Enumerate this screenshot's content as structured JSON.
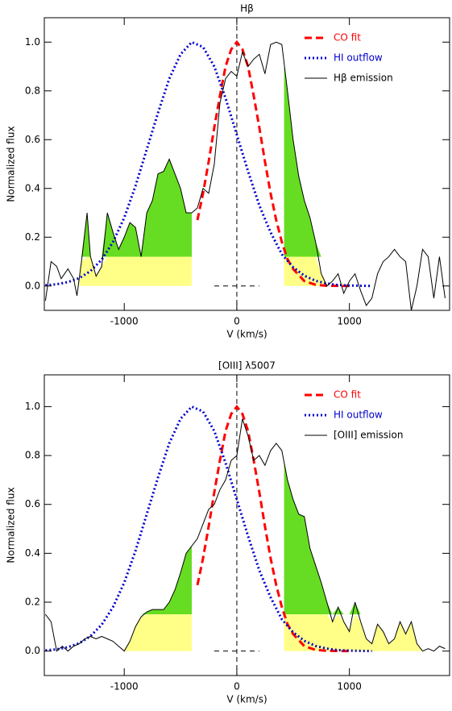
{
  "chart_data": [
    {
      "type": "line",
      "title": "Hβ",
      "xlabel": "V (km/s)",
      "ylabel": "Normalized flux",
      "xlim": [
        -1710,
        1890
      ],
      "ylim": [
        -0.1,
        1.1
      ],
      "xticks": [
        -1000,
        0,
        1000
      ],
      "yticks": [
        {
          "value": 0,
          "label": "0.0"
        },
        0.2,
        0.4,
        0.6,
        0.8,
        {
          "value": 1,
          "label": "1.0"
        }
      ],
      "legend": "upper right",
      "vline": 0,
      "hsegment": {
        "x": [
          -200,
          200
        ],
        "y": 0
      },
      "shade": {
        "ranges": [
          [
            -1400,
            -400
          ],
          [
            420,
            780
          ]
        ],
        "level": 0.12,
        "upper_color": "#66dd22",
        "lower_color": "#ffff88"
      },
      "series": [
        {
          "name": "CO fit",
          "color": "#ff0000",
          "linestyle": "dashed",
          "x": [
            -350,
            -300,
            -250,
            -200,
            -150,
            -100,
            -50,
            0,
            50,
            100,
            150,
            200,
            250,
            300,
            350,
            400,
            450,
            500,
            600,
            700,
            800,
            1000
          ],
          "values": [
            0.27,
            0.38,
            0.51,
            0.65,
            0.78,
            0.9,
            0.97,
            1.0,
            0.97,
            0.9,
            0.78,
            0.65,
            0.51,
            0.38,
            0.27,
            0.18,
            0.11,
            0.07,
            0.02,
            0.005,
            0.001,
            0.0
          ]
        },
        {
          "name": "HI outflow",
          "color": "#0000cc",
          "linestyle": "dotted",
          "x": [
            -1700,
            -1600,
            -1500,
            -1400,
            -1300,
            -1200,
            -1100,
            -1000,
            -900,
            -800,
            -700,
            -600,
            -500,
            -400,
            -300,
            -200,
            -100,
            0,
            100,
            200,
            300,
            400,
            500,
            600,
            700,
            800,
            900,
            1000,
            1100,
            1200
          ],
          "values": [
            0.003,
            0.007,
            0.016,
            0.032,
            0.061,
            0.108,
            0.18,
            0.28,
            0.41,
            0.56,
            0.71,
            0.85,
            0.95,
            1.0,
            0.98,
            0.9,
            0.77,
            0.62,
            0.47,
            0.33,
            0.22,
            0.13,
            0.077,
            0.042,
            0.021,
            0.01,
            0.004,
            0.002,
            0.001,
            0.0
          ]
        },
        {
          "name": "Hβ emission",
          "color": "#000000",
          "linestyle": "solid",
          "x": [
            -1700,
            -1650,
            -1600,
            -1560,
            -1500,
            -1450,
            -1420,
            -1380,
            -1330,
            -1300,
            -1250,
            -1200,
            -1150,
            -1100,
            -1050,
            -1000,
            -950,
            -900,
            -850,
            -800,
            -750,
            -700,
            -650,
            -600,
            -550,
            -500,
            -450,
            -400,
            -350,
            -300,
            -250,
            -200,
            -150,
            -100,
            -50,
            0,
            50,
            100,
            150,
            200,
            250,
            300,
            350,
            400,
            450,
            500,
            550,
            600,
            650,
            700,
            750,
            800,
            850,
            900,
            950,
            1000,
            1050,
            1100,
            1150,
            1200,
            1250,
            1300,
            1350,
            1400,
            1450,
            1500,
            1550,
            1600,
            1650,
            1700,
            1750,
            1800,
            1850
          ],
          "values": [
            -0.06,
            0.1,
            0.08,
            0.03,
            0.07,
            0.03,
            -0.04,
            0.1,
            0.3,
            0.12,
            0.04,
            0.08,
            0.3,
            0.22,
            0.15,
            0.2,
            0.26,
            0.24,
            0.12,
            0.3,
            0.35,
            0.46,
            0.47,
            0.52,
            0.46,
            0.4,
            0.3,
            0.3,
            0.32,
            0.4,
            0.38,
            0.5,
            0.75,
            0.85,
            0.88,
            0.86,
            0.96,
            0.9,
            0.93,
            0.95,
            0.87,
            0.99,
            1.0,
            0.99,
            0.8,
            0.6,
            0.45,
            0.35,
            0.28,
            0.18,
            0.05,
            0.0,
            0.02,
            0.05,
            -0.03,
            0.02,
            0.05,
            -0.02,
            -0.08,
            -0.05,
            0.05,
            0.1,
            0.12,
            0.15,
            0.12,
            0.1,
            -0.1,
            0.0,
            0.15,
            0.12,
            -0.05,
            0.12,
            -0.05
          ]
        }
      ]
    },
    {
      "type": "line",
      "title": "[OIII] λ5007",
      "xlabel": "V (km/s)",
      "ylabel": "Normalized flux",
      "xlim": [
        -1710,
        1890
      ],
      "ylim": [
        -0.1,
        1.13
      ],
      "xticks": [
        -1000,
        0,
        1000
      ],
      "yticks": [
        {
          "value": 0,
          "label": "0.0"
        },
        0.2,
        0.4,
        0.6,
        0.8,
        {
          "value": 1,
          "label": "1.0"
        }
      ],
      "legend": "upper right",
      "vline": 0,
      "hsegment": {
        "x": [
          -200,
          200
        ],
        "y": 0
      },
      "shade": {
        "ranges": [
          [
            -1000,
            -400
          ],
          [
            420,
            1650
          ]
        ],
        "level": 0.15,
        "upper_color": "#66dd22",
        "lower_color": "#ffff88"
      },
      "series": [
        {
          "name": "CO fit",
          "color": "#ff0000",
          "linestyle": "dashed",
          "x": [
            -350,
            -300,
            -250,
            -200,
            -150,
            -100,
            -50,
            0,
            50,
            100,
            150,
            200,
            250,
            300,
            350,
            400,
            450,
            500,
            600,
            700,
            800,
            1000
          ],
          "values": [
            0.27,
            0.38,
            0.51,
            0.65,
            0.78,
            0.9,
            0.97,
            1.0,
            0.97,
            0.9,
            0.78,
            0.65,
            0.51,
            0.38,
            0.27,
            0.18,
            0.11,
            0.07,
            0.02,
            0.005,
            0.001,
            0.0
          ]
        },
        {
          "name": "HI outflow",
          "color": "#0000cc",
          "linestyle": "dotted",
          "x": [
            -1700,
            -1600,
            -1500,
            -1400,
            -1300,
            -1200,
            -1100,
            -1000,
            -900,
            -800,
            -700,
            -600,
            -500,
            -400,
            -300,
            -200,
            -100,
            0,
            100,
            200,
            300,
            400,
            500,
            600,
            700,
            800,
            900,
            1000,
            1100,
            1200
          ],
          "values": [
            0.003,
            0.007,
            0.016,
            0.032,
            0.061,
            0.108,
            0.18,
            0.28,
            0.41,
            0.56,
            0.71,
            0.85,
            0.95,
            1.0,
            0.98,
            0.9,
            0.77,
            0.62,
            0.47,
            0.33,
            0.22,
            0.13,
            0.077,
            0.042,
            0.021,
            0.01,
            0.004,
            0.002,
            0.001,
            0.0
          ]
        },
        {
          "name": "[OIII] emission",
          "color": "#000000",
          "linestyle": "solid",
          "x": [
            -1700,
            -1650,
            -1600,
            -1550,
            -1500,
            -1450,
            -1400,
            -1350,
            -1300,
            -1250,
            -1200,
            -1150,
            -1100,
            -1050,
            -1000,
            -950,
            -900,
            -850,
            -800,
            -750,
            -700,
            -650,
            -600,
            -550,
            -500,
            -450,
            -400,
            -350,
            -300,
            -250,
            -200,
            -150,
            -100,
            -50,
            0,
            50,
            100,
            150,
            200,
            250,
            300,
            350,
            400,
            450,
            500,
            550,
            600,
            650,
            700,
            750,
            800,
            850,
            900,
            950,
            1000,
            1050,
            1100,
            1150,
            1200,
            1250,
            1300,
            1350,
            1400,
            1450,
            1500,
            1550,
            1600,
            1650,
            1700,
            1750,
            1800,
            1850
          ],
          "values": [
            0.15,
            0.12,
            0.0,
            0.02,
            0.0,
            0.02,
            0.03,
            0.05,
            0.06,
            0.05,
            0.06,
            0.05,
            0.04,
            0.02,
            0.0,
            0.04,
            0.1,
            0.14,
            0.16,
            0.17,
            0.17,
            0.17,
            0.2,
            0.25,
            0.32,
            0.4,
            0.43,
            0.46,
            0.52,
            0.58,
            0.6,
            0.66,
            0.7,
            0.78,
            0.8,
            0.95,
            0.88,
            0.78,
            0.8,
            0.76,
            0.82,
            0.85,
            0.82,
            0.7,
            0.62,
            0.56,
            0.55,
            0.42,
            0.35,
            0.28,
            0.2,
            0.12,
            0.18,
            0.12,
            0.08,
            0.2,
            0.12,
            0.05,
            0.03,
            0.11,
            0.08,
            0.03,
            0.05,
            0.12,
            0.07,
            0.12,
            0.03,
            0.0,
            0.01,
            0.0,
            0.02,
            0.01
          ]
        }
      ]
    }
  ]
}
